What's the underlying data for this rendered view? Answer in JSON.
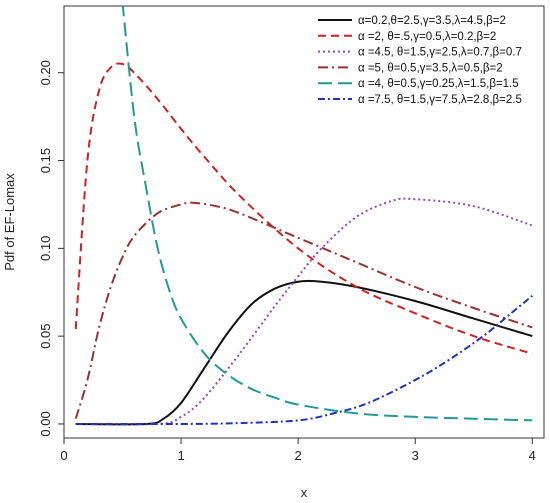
{
  "chart_data": {
    "type": "line",
    "title": "",
    "xlabel": "x",
    "ylabel": "Pdf of EF-Lomax",
    "xlim": [
      0,
      4.1
    ],
    "ylim": [
      -0.008,
      0.238
    ],
    "x_ticks": [
      0,
      1,
      2,
      3,
      4
    ],
    "x_tick_labels": [
      "0",
      "1",
      "2",
      "3",
      "4"
    ],
    "y_ticks": [
      0.0,
      0.05,
      0.1,
      0.15,
      0.2
    ],
    "y_tick_labels": [
      "0.00",
      "0.05",
      "0.10",
      "0.15",
      "0.20"
    ],
    "grid": false,
    "legend_position": "top-right",
    "series": [
      {
        "name": "α=0.2,θ=2.5,γ=3.5,λ=4.5,β=2",
        "color": "#111111",
        "dash": "solid",
        "x": [
          0.1,
          0.7,
          0.85,
          1.0,
          1.2,
          1.4,
          1.6,
          1.8,
          2.0,
          2.2,
          2.5,
          3.0,
          3.5,
          4.0
        ],
        "y": [
          0.0,
          0.0,
          0.003,
          0.012,
          0.032,
          0.052,
          0.068,
          0.077,
          0.081,
          0.081,
          0.078,
          0.07,
          0.06,
          0.05
        ]
      },
      {
        "name": "α =2, θ=.5,γ=0.5,λ=0.2,β=2",
        "color": "#cc2222",
        "dash": "dashed",
        "x": [
          0.1,
          0.2,
          0.3,
          0.4,
          0.5,
          0.6,
          0.8,
          1.0,
          1.2,
          1.5,
          2.0,
          2.5,
          3.0,
          3.5,
          4.0
        ],
        "y": [
          0.054,
          0.15,
          0.19,
          0.203,
          0.205,
          0.2,
          0.185,
          0.168,
          0.152,
          0.13,
          0.1,
          0.078,
          0.063,
          0.05,
          0.04
        ]
      },
      {
        "name": "α =4.5, θ=1.5,γ=2.5,λ=0.7,β=0.7",
        "color": "#9944cc",
        "dash": "dotted",
        "x": [
          0.1,
          0.8,
          1.0,
          1.2,
          1.5,
          1.8,
          2.0,
          2.2,
          2.5,
          2.8,
          3.0,
          3.5,
          4.0
        ],
        "y": [
          0.0,
          0.0,
          0.004,
          0.015,
          0.04,
          0.067,
          0.084,
          0.1,
          0.118,
          0.127,
          0.128,
          0.124,
          0.113
        ]
      },
      {
        "name": "α =5, θ=0.5,γ=3.5,λ=0.5,β=2",
        "color": "#993333",
        "dash": "dashdot",
        "x": [
          0.1,
          0.2,
          0.3,
          0.4,
          0.5,
          0.6,
          0.8,
          1.0,
          1.1,
          1.3,
          1.5,
          2.0,
          2.5,
          3.0,
          3.5,
          4.0
        ],
        "y": [
          0.003,
          0.025,
          0.055,
          0.078,
          0.095,
          0.107,
          0.12,
          0.125,
          0.126,
          0.124,
          0.12,
          0.106,
          0.092,
          0.078,
          0.066,
          0.055
        ]
      },
      {
        "name": "α =4, θ=0.5,γ=0.25,λ=1.5,β=1.5",
        "color": "#229999",
        "dash": "longdash",
        "x": [
          0.5,
          0.6,
          0.7,
          0.8,
          0.9,
          1.0,
          1.2,
          1.4,
          1.6,
          1.8,
          2.0,
          2.5,
          3.0,
          3.5,
          4.0
        ],
        "y": [
          0.24,
          0.175,
          0.135,
          0.1,
          0.076,
          0.06,
          0.04,
          0.028,
          0.02,
          0.015,
          0.011,
          0.006,
          0.004,
          0.003,
          0.002
        ]
      },
      {
        "name": "α =7.5, θ=1.5,γ=7.5,λ=2.8,β=2.5",
        "color": "#2233bb",
        "dash": "dashdot2",
        "x": [
          0.1,
          1.0,
          1.5,
          2.0,
          2.3,
          2.6,
          3.0,
          3.3,
          3.6,
          3.8,
          4.0
        ],
        "y": [
          0.0,
          0.0,
          0.0005,
          0.002,
          0.006,
          0.012,
          0.025,
          0.037,
          0.051,
          0.062,
          0.073
        ]
      }
    ]
  }
}
